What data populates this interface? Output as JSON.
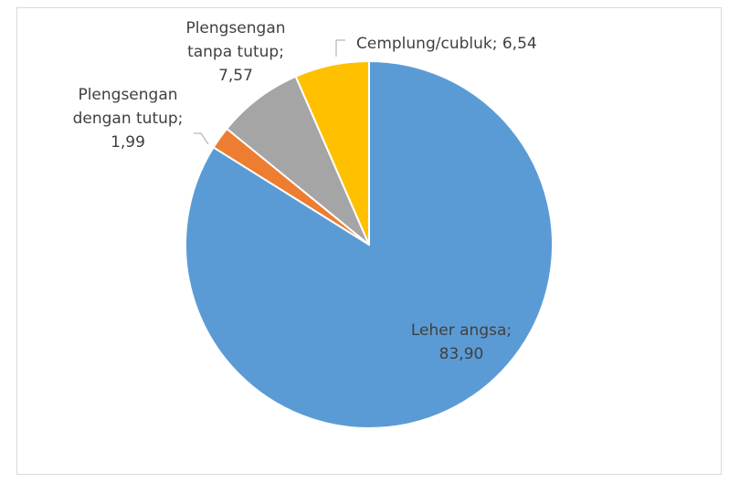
{
  "chart_data": {
    "type": "pie",
    "values": [
      83.9,
      1.99,
      7.57,
      6.54
    ],
    "value_labels": [
      [
        "Leher angsa;",
        "83,90"
      ],
      [
        "Plengsengan",
        "dengan tutup;",
        "1,99"
      ],
      [
        "Plengsengan",
        "tanpa tutup;",
        "7,57"
      ],
      [
        "Cemplung/cubluk; 6,54"
      ]
    ],
    "colors": [
      "#5b9bd5",
      "#ed7d31",
      "#a5a5a5",
      "#ffc000"
    ]
  }
}
